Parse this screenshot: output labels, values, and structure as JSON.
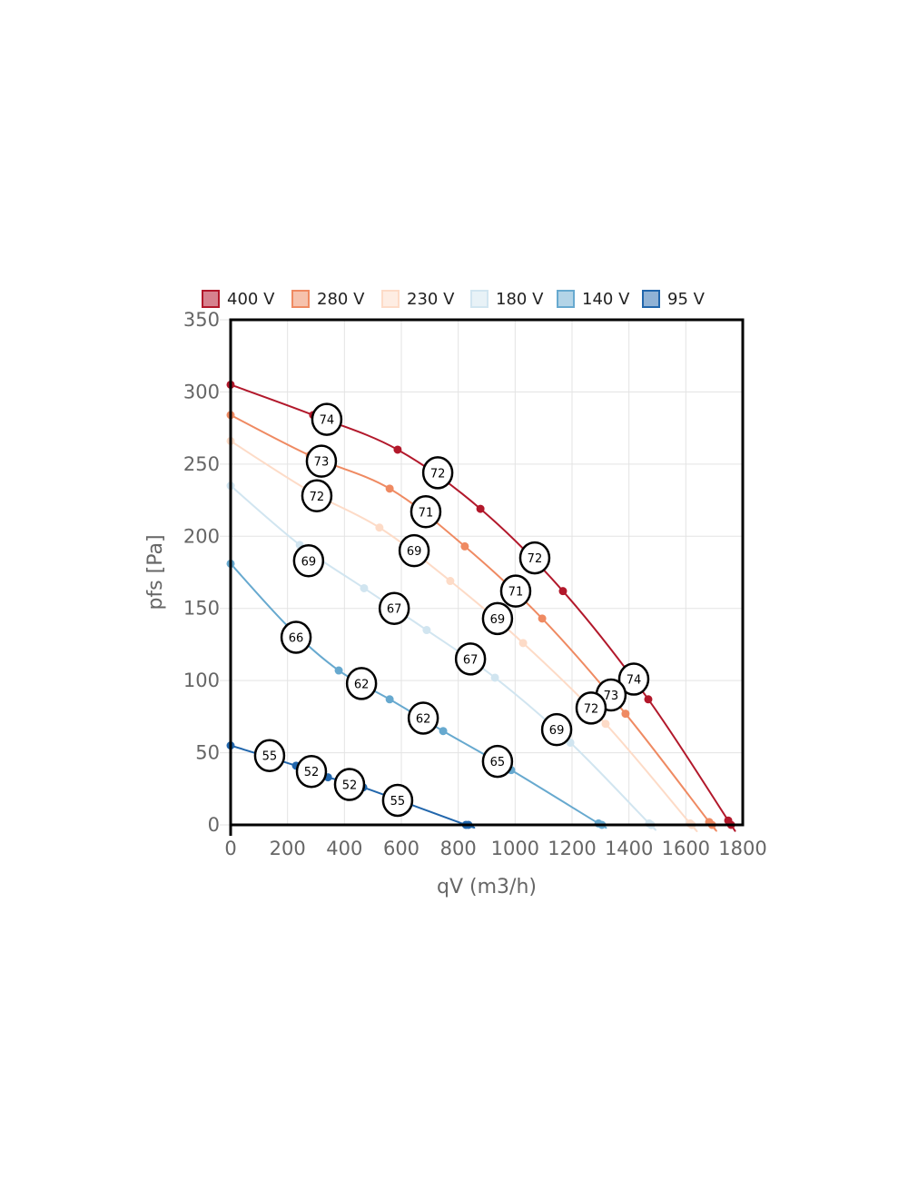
{
  "chart_data": {
    "type": "line",
    "xlabel": "qV (m3/h)",
    "ylabel": "pfs [Pa]",
    "xlim": [
      0,
      1800
    ],
    "ylim": [
      0,
      350
    ],
    "xticks": [
      "0",
      "200",
      "400",
      "600",
      "800",
      "1000",
      "1200",
      "1400",
      "1600",
      "1800"
    ],
    "yticks": [
      "0",
      "50",
      "100",
      "150",
      "200",
      "250",
      "300",
      "350"
    ],
    "grid": true,
    "legend_position": "top",
    "series": [
      {
        "name": "400 V",
        "color": "#b2182b",
        "fill": "#d6818e",
        "points": [
          [
            0,
            305
          ],
          [
            290,
            284
          ],
          [
            587,
            260
          ],
          [
            878,
            219
          ],
          [
            1168,
            162
          ],
          [
            1468,
            87
          ],
          [
            1749,
            3
          ],
          [
            1759,
            0
          ]
        ],
        "labels": [
          {
            "text": "74",
            "x": 338,
            "y": 281
          },
          {
            "text": "72",
            "x": 728,
            "y": 244
          },
          {
            "text": "72",
            "x": 1069,
            "y": 185
          },
          {
            "text": "74",
            "x": 1417,
            "y": 101
          }
        ]
      },
      {
        "name": "280 V",
        "color": "#ef8a62",
        "fill": "#f6c2ad",
        "points": [
          [
            0,
            284
          ],
          [
            278,
            256
          ],
          [
            559,
            233
          ],
          [
            823,
            193
          ],
          [
            1095,
            143
          ],
          [
            1388,
            77
          ],
          [
            1682,
            2
          ],
          [
            1692,
            0
          ]
        ],
        "labels": [
          {
            "text": "73",
            "x": 319,
            "y": 252
          },
          {
            "text": "71",
            "x": 686,
            "y": 217
          },
          {
            "text": "71",
            "x": 1002,
            "y": 162
          },
          {
            "text": "73",
            "x": 1337,
            "y": 90
          }
        ]
      },
      {
        "name": "230 V",
        "color": "#fddbc7",
        "fill": "#feede3",
        "points": [
          [
            0,
            266
          ],
          [
            271,
            232
          ],
          [
            523,
            206
          ],
          [
            772,
            169
          ],
          [
            1028,
            126
          ],
          [
            1318,
            70
          ],
          [
            1615,
            1
          ],
          [
            1621,
            0
          ]
        ],
        "labels": [
          {
            "text": "72",
            "x": 303,
            "y": 228
          },
          {
            "text": "69",
            "x": 645,
            "y": 190
          },
          {
            "text": "69",
            "x": 938,
            "y": 143
          },
          {
            "text": "72",
            "x": 1267,
            "y": 81
          }
        ]
      },
      {
        "name": "180 V",
        "color": "#d1e5f0",
        "fill": "#e8f2f7",
        "points": [
          [
            0,
            235
          ],
          [
            243,
            194
          ],
          [
            469,
            164
          ],
          [
            689,
            135
          ],
          [
            929,
            102
          ],
          [
            1194,
            57
          ],
          [
            1471,
            1
          ],
          [
            1478,
            0
          ]
        ],
        "labels": [
          {
            "text": "69",
            "x": 274,
            "y": 183
          },
          {
            "text": "67",
            "x": 575,
            "y": 150
          },
          {
            "text": "67",
            "x": 843,
            "y": 115
          },
          {
            "text": "69",
            "x": 1146,
            "y": 66
          }
        ]
      },
      {
        "name": "140 V",
        "color": "#67a9cf",
        "fill": "#b3d4e7",
        "points": [
          [
            0,
            181
          ],
          [
            204,
            137
          ],
          [
            380,
            107
          ],
          [
            559,
            87
          ],
          [
            747,
            65
          ],
          [
            986,
            38
          ],
          [
            1293,
            1
          ],
          [
            1305,
            0
          ]
        ],
        "labels": [
          {
            "text": "66",
            "x": 230,
            "y": 130
          },
          {
            "text": "62",
            "x": 460,
            "y": 98
          },
          {
            "text": "62",
            "x": 677,
            "y": 74
          },
          {
            "text": "65",
            "x": 938,
            "y": 44
          }
        ]
      },
      {
        "name": "95 V",
        "color": "#2166ac",
        "fill": "#90b2d5",
        "points": [
          [
            0,
            55
          ],
          [
            230,
            41
          ],
          [
            342,
            33
          ],
          [
            466,
            26
          ],
          [
            827,
            0
          ],
          [
            836,
            0
          ]
        ],
        "labels": [
          {
            "text": "55",
            "x": 137,
            "y": 48
          },
          {
            "text": "52",
            "x": 284,
            "y": 37
          },
          {
            "text": "52",
            "x": 418,
            "y": 28
          },
          {
            "text": "55",
            "x": 587,
            "y": 17
          }
        ]
      }
    ]
  }
}
